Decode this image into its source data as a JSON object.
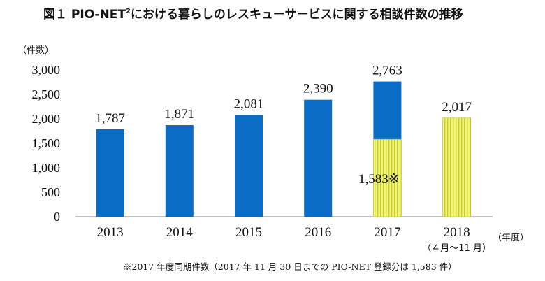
{
  "chart_data": {
    "type": "bar",
    "title_main": "図１ PIO-NET",
    "title_sup": "2",
    "title_rest": "における暮らしのレスキューサービスに関する相談件数の推移",
    "ylabel": "（件数）",
    "xlabel": "（年度）",
    "ylim": [
      0,
      3000
    ],
    "yticks": [
      "0",
      "500",
      "1,000",
      "1,500",
      "2,000",
      "2,500",
      "3,000"
    ],
    "ytick_values": [
      0,
      500,
      1000,
      1500,
      2000,
      2500,
      3000
    ],
    "categories": [
      "2013",
      "2014",
      "2015",
      "2016",
      "2017",
      "2018"
    ],
    "category_sublabels": [
      "",
      "",
      "",
      "",
      "",
      "（４月～11 月）"
    ],
    "values": [
      1787,
      1871,
      2081,
      2390,
      2763,
      2017
    ],
    "value_labels": [
      "1,787",
      "1,871",
      "2,081",
      "2,390",
      "2,763",
      "2,017"
    ],
    "same_period_2017": 1583,
    "same_period_2017_label": "1,583※",
    "note": "※2017 年度同期件数（2017 年 11 月 30 日までの PIO-NET 登録分は 1,583 件）",
    "colors": {
      "bar": "#0a6cc4",
      "period": "#f2f57a",
      "period_stripe": "#c9cc2a"
    },
    "grid": false,
    "legend": "none"
  }
}
